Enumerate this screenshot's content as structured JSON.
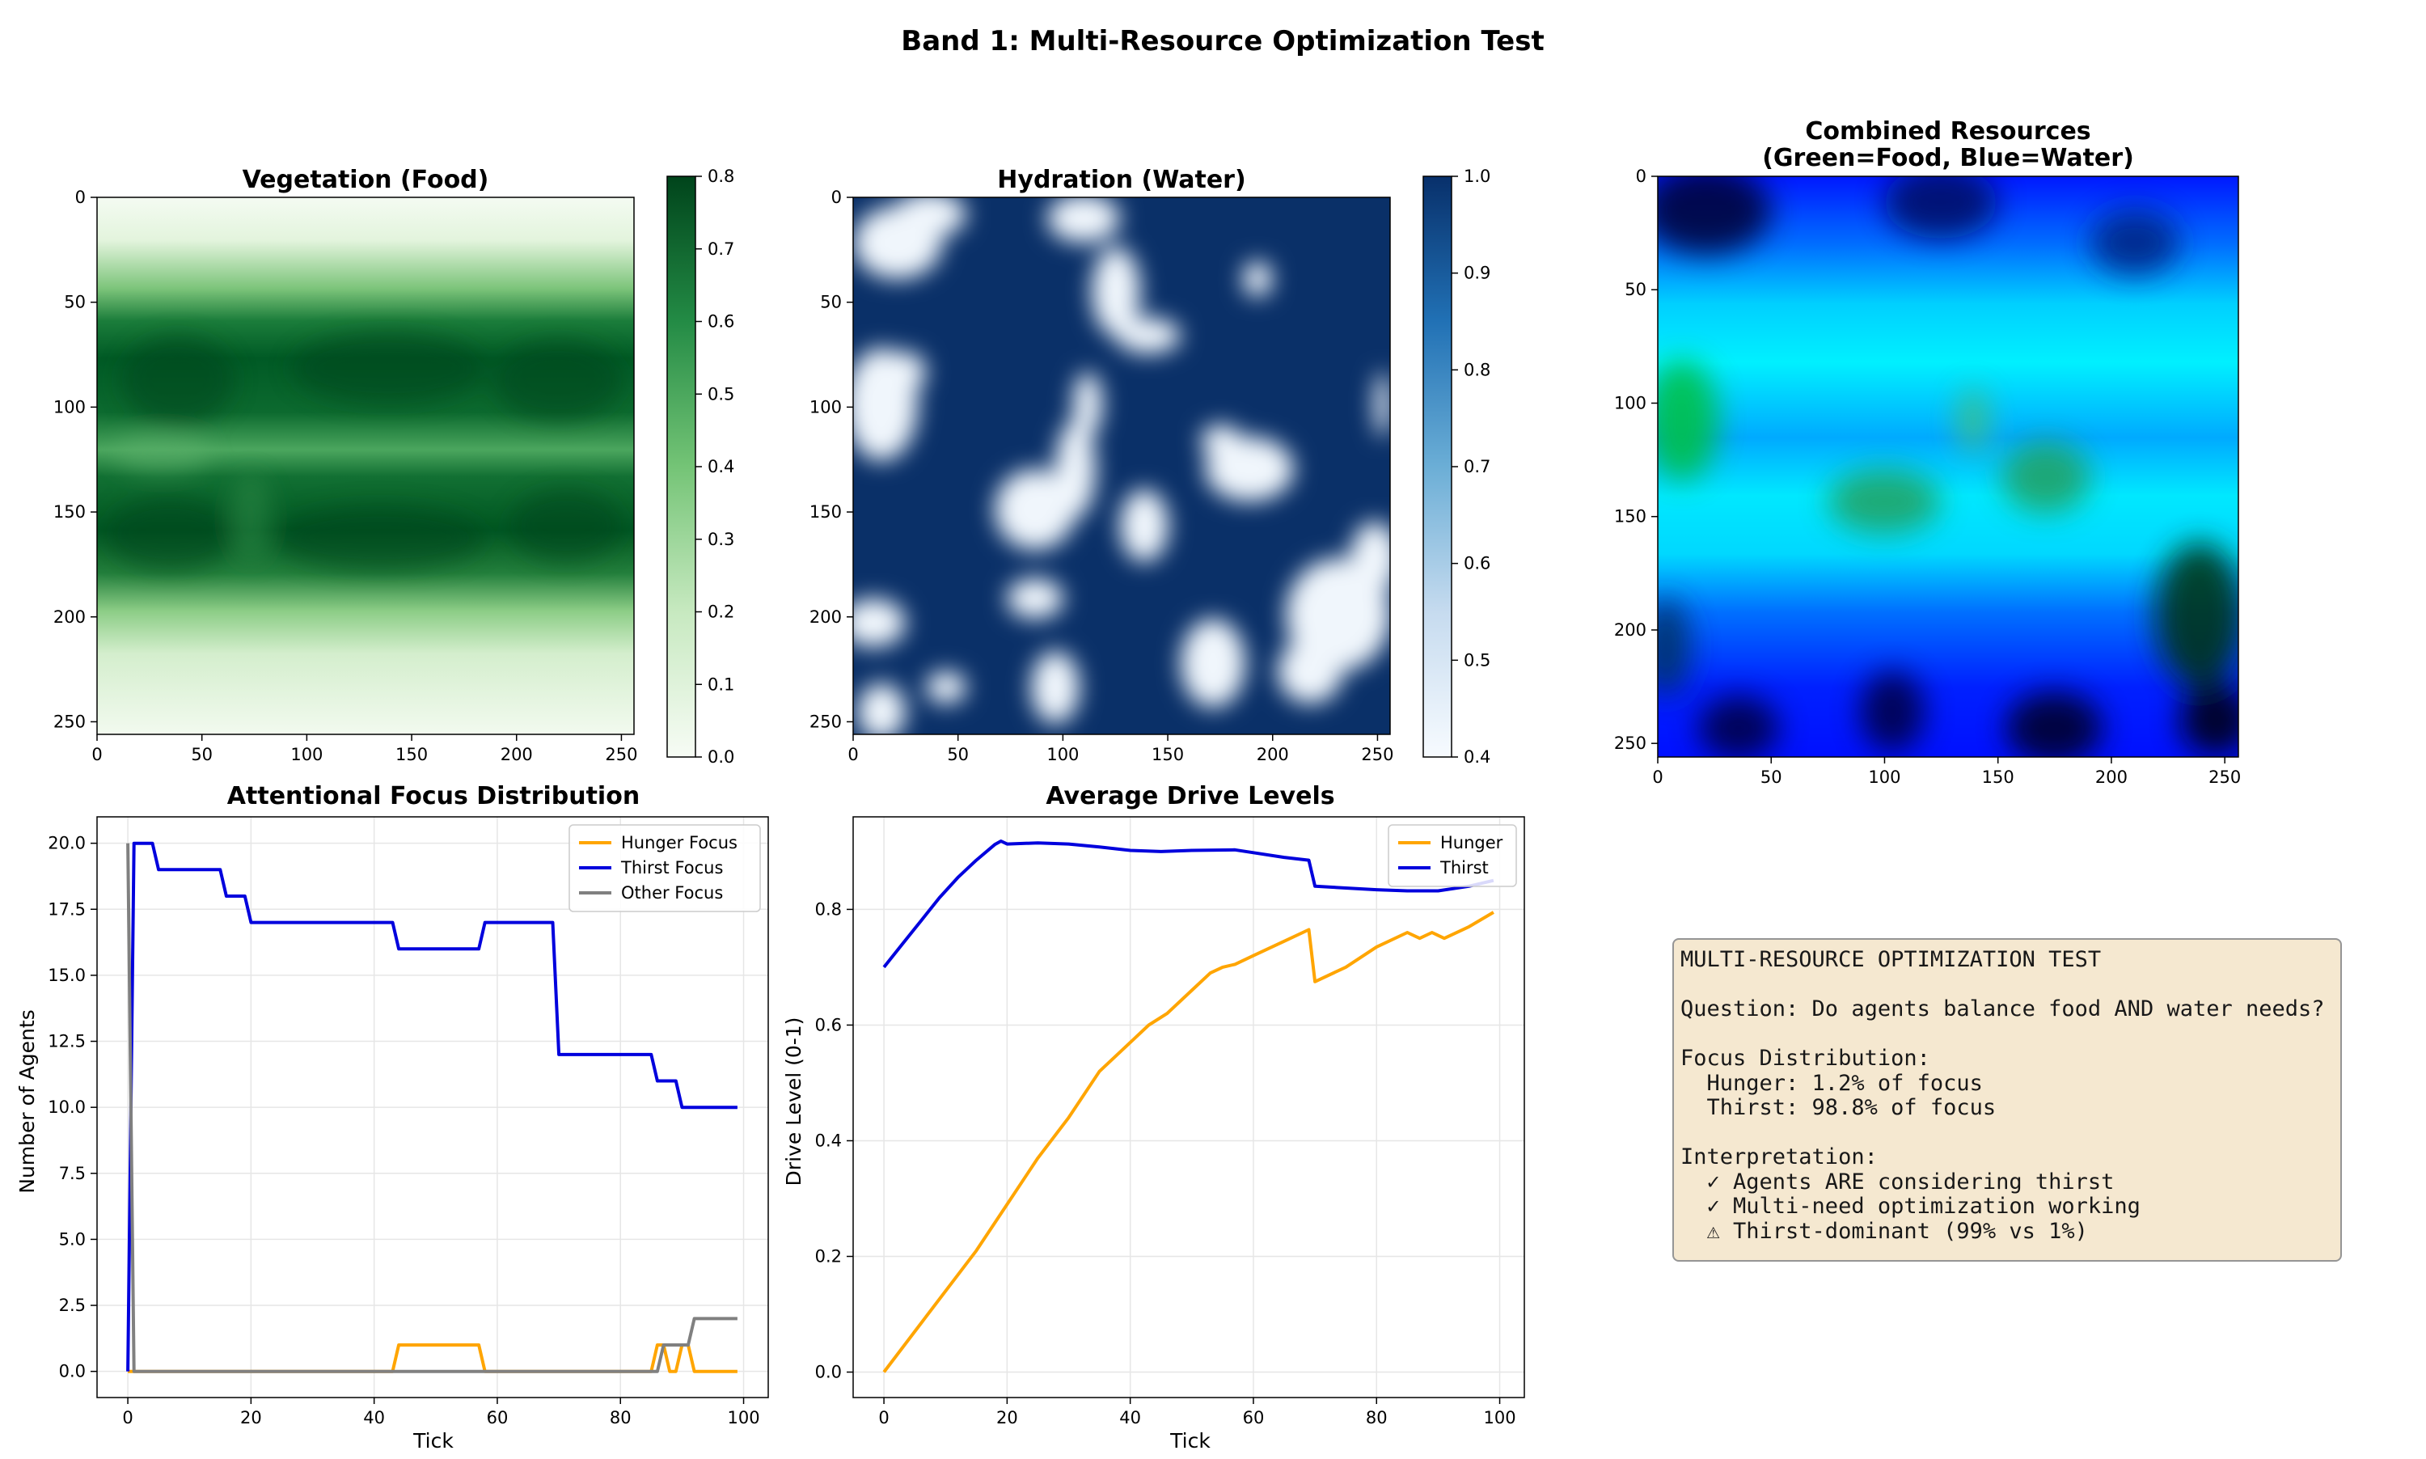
{
  "figure": {
    "suptitle": "Band 1: Multi-Resource Optimization Test"
  },
  "colors": {
    "hunger": "#ffa500",
    "thirst": "#0000dd",
    "other": "#808080",
    "greens_low": "#f7fcf5",
    "greens_high": "#00441b",
    "blues_low": "#f7fbff",
    "blues_high": "#08306b"
  },
  "chart_data": [
    {
      "id": "vegetation",
      "type": "heatmap",
      "title": "Vegetation (Food)",
      "xticks": [
        0,
        50,
        100,
        150,
        200,
        250
      ],
      "yticks": [
        0,
        50,
        100,
        150,
        200,
        250
      ],
      "xlim": [
        0,
        256
      ],
      "ylim": [
        256,
        0
      ],
      "colorbar": {
        "cmap": "Greens",
        "range": [
          0.0,
          0.8
        ],
        "ticks": [
          "0.0",
          "0.1",
          "0.2",
          "0.3",
          "0.4",
          "0.5",
          "0.6",
          "0.7",
          "0.8"
        ]
      }
    },
    {
      "id": "hydration",
      "type": "heatmap",
      "title": "Hydration (Water)",
      "xticks": [
        0,
        50,
        100,
        150,
        200,
        250
      ],
      "yticks": [
        0,
        50,
        100,
        150,
        200,
        250
      ],
      "xlim": [
        0,
        256
      ],
      "ylim": [
        256,
        0
      ],
      "colorbar": {
        "cmap": "Blues",
        "range": [
          0.4,
          1.0
        ],
        "ticks": [
          "0.4",
          "0.5",
          "0.6",
          "0.7",
          "0.8",
          "0.9",
          "1.0"
        ]
      }
    },
    {
      "id": "combined",
      "type": "heatmap",
      "title": [
        "Combined Resources",
        "(Green=Food, Blue=Water)"
      ],
      "xticks": [
        0,
        50,
        100,
        150,
        200,
        250
      ],
      "yticks": [
        0,
        50,
        100,
        150,
        200,
        250
      ],
      "xlim": [
        0,
        256
      ],
      "ylim": [
        256,
        0
      ]
    },
    {
      "id": "focus",
      "type": "line",
      "title": "Attentional Focus Distribution",
      "xlabel": "Tick",
      "ylabel": "Number of Agents",
      "xlim": [
        -5,
        104
      ],
      "ylim": [
        -0.99,
        21.0
      ],
      "xticks": [
        0,
        20,
        40,
        60,
        80,
        100
      ],
      "yticks": [
        "0.0",
        "2.5",
        "5.0",
        "7.5",
        "10.0",
        "12.5",
        "15.0",
        "17.5",
        "20.0"
      ],
      "legend": "top-right",
      "grid": true,
      "series": [
        {
          "name": "Hunger Focus",
          "color": "#ffa500",
          "points": [
            [
              0,
              0
            ],
            [
              43,
              0
            ],
            [
              44,
              1
            ],
            [
              57,
              1
            ],
            [
              58,
              0
            ],
            [
              85,
              0
            ],
            [
              86,
              1
            ],
            [
              87,
              1
            ],
            [
              88,
              0
            ],
            [
              89,
              0
            ],
            [
              90,
              1
            ],
            [
              91,
              1
            ],
            [
              92,
              0
            ],
            [
              99,
              0
            ]
          ]
        },
        {
          "name": "Thirst Focus",
          "color": "#0000dd",
          "points": [
            [
              0,
              0
            ],
            [
              1,
              20
            ],
            [
              4,
              20
            ],
            [
              5,
              19
            ],
            [
              15,
              19
            ],
            [
              16,
              18
            ],
            [
              19,
              18
            ],
            [
              20,
              17
            ],
            [
              43,
              17
            ],
            [
              44,
              16
            ],
            [
              57,
              16
            ],
            [
              58,
              17
            ],
            [
              69,
              17
            ],
            [
              70,
              12
            ],
            [
              85,
              12
            ],
            [
              86,
              11
            ],
            [
              89,
              11
            ],
            [
              90,
              10
            ],
            [
              99,
              10
            ]
          ]
        },
        {
          "name": "Other Focus",
          "color": "#808080",
          "points": [
            [
              0,
              20
            ],
            [
              1,
              0
            ],
            [
              86,
              0
            ],
            [
              87,
              1
            ],
            [
              91,
              1
            ],
            [
              92,
              2
            ],
            [
              99,
              2
            ]
          ]
        }
      ]
    },
    {
      "id": "drives",
      "type": "line",
      "title": "Average Drive Levels",
      "xlabel": "Tick",
      "ylabel": "Drive Level (0-1)",
      "xlim": [
        -5,
        104
      ],
      "ylim": [
        -0.044,
        0.96
      ],
      "xticks": [
        0,
        20,
        40,
        60,
        80,
        100
      ],
      "yticks": [
        "0.0",
        "0.2",
        "0.4",
        "0.6",
        "0.8"
      ],
      "legend": "top-right",
      "grid": true,
      "series": [
        {
          "name": "Hunger",
          "color": "#ffa500",
          "points": [
            [
              0,
              0
            ],
            [
              5,
              0.07
            ],
            [
              10,
              0.14
            ],
            [
              15,
              0.21
            ],
            [
              20,
              0.29
            ],
            [
              25,
              0.37
            ],
            [
              30,
              0.44
            ],
            [
              35,
              0.52
            ],
            [
              40,
              0.57
            ],
            [
              43,
              0.6
            ],
            [
              46,
              0.62
            ],
            [
              50,
              0.66
            ],
            [
              53,
              0.69
            ],
            [
              55,
              0.7
            ],
            [
              57,
              0.705
            ],
            [
              60,
              0.72
            ],
            [
              65,
              0.745
            ],
            [
              69,
              0.765
            ],
            [
              70,
              0.675
            ],
            [
              75,
              0.7
            ],
            [
              80,
              0.735
            ],
            [
              85,
              0.76
            ],
            [
              87,
              0.75
            ],
            [
              89,
              0.76
            ],
            [
              91,
              0.75
            ],
            [
              95,
              0.77
            ],
            [
              99,
              0.795
            ]
          ]
        },
        {
          "name": "Thirst",
          "color": "#0000dd",
          "points": [
            [
              0,
              0.7
            ],
            [
              3,
              0.74
            ],
            [
              6,
              0.78
            ],
            [
              9,
              0.82
            ],
            [
              12,
              0.855
            ],
            [
              15,
              0.885
            ],
            [
              18,
              0.912
            ],
            [
              19,
              0.918
            ],
            [
              20,
              0.913
            ],
            [
              25,
              0.915
            ],
            [
              30,
              0.913
            ],
            [
              35,
              0.908
            ],
            [
              40,
              0.902
            ],
            [
              45,
              0.9
            ],
            [
              50,
              0.902
            ],
            [
              57,
              0.903
            ],
            [
              60,
              0.898
            ],
            [
              65,
              0.89
            ],
            [
              69,
              0.885
            ],
            [
              70,
              0.84
            ],
            [
              75,
              0.837
            ],
            [
              80,
              0.834
            ],
            [
              85,
              0.832
            ],
            [
              90,
              0.832
            ],
            [
              95,
              0.84
            ],
            [
              99,
              0.85
            ]
          ]
        }
      ]
    }
  ],
  "info": {
    "lines": [
      "MULTI-RESOURCE OPTIMIZATION TEST",
      "",
      "Question: Do agents balance food AND water needs?",
      "",
      "Focus Distribution:",
      "  Hunger: 1.2% of focus",
      "  Thirst: 98.8% of focus",
      "",
      "Interpretation:",
      "  ✓ Agents ARE considering thirst",
      "  ✓ Multi-need optimization working",
      "  ⚠ Thirst-dominant (99% vs 1%)"
    ]
  }
}
